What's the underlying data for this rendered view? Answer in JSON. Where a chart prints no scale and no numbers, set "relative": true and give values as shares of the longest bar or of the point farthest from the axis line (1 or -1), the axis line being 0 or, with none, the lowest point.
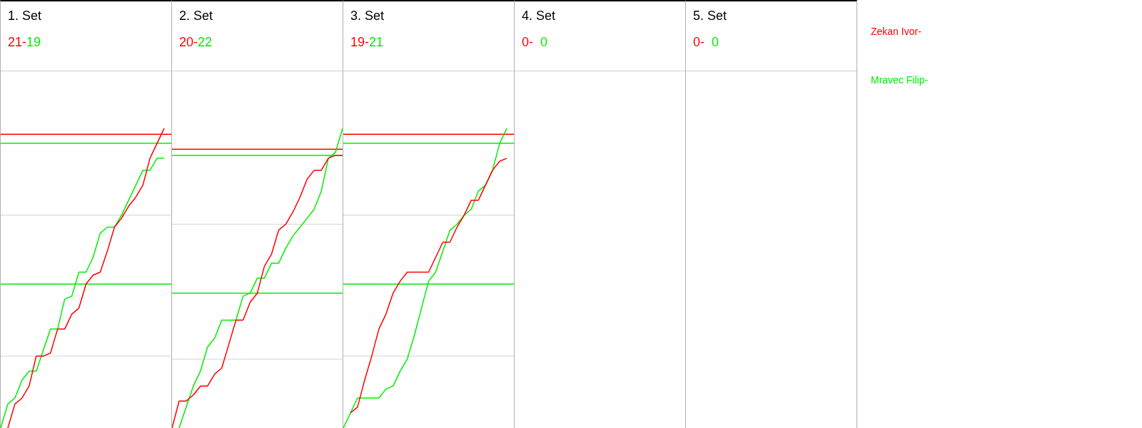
{
  "chart_data": [
    {
      "type": "line",
      "title": "1. Set",
      "relative": true,
      "legend": "right",
      "annotations": [
        "21-",
        "19"
      ],
      "categories": [
        null,
        null,
        null,
        null,
        null,
        null,
        null,
        null,
        null,
        null,
        null,
        null,
        null,
        null,
        null,
        null,
        null,
        null,
        null,
        null,
        null,
        null,
        null,
        null,
        null
      ],
      "series": [
        {
          "name": "Zekan Ivor-",
          "color": "#ff0000",
          "values": [
            null,
            0,
            0.08,
            0.1,
            0.14,
            0.24,
            0.24,
            0.25,
            0.33,
            0.33,
            0.38,
            0.4,
            0.48,
            0.51,
            0.52,
            0.59,
            0.67,
            0.7,
            0.74,
            0.77,
            0.81,
            0.9,
            0.95,
            1,
            null
          ]
        },
        {
          "name": "Mravec Filip-",
          "color": "#00ee00",
          "values": [
            0,
            0.08,
            0.1,
            0.16,
            0.19,
            0.19,
            0.26,
            0.33,
            0.33,
            0.43,
            0.44,
            0.52,
            0.52,
            0.57,
            0.65,
            0.67,
            0.67,
            0.71,
            0.76,
            0.81,
            0.86,
            0.86,
            0.9,
            0.9,
            null
          ]
        }
      ],
      "ref_lines": [
        {
          "axis": "y",
          "value": 0.98,
          "color": "#ff0000"
        },
        {
          "axis": "y",
          "value": 0.95,
          "color": "#00ee00"
        },
        {
          "axis": "y",
          "value": 0.48,
          "color": "#00ee00"
        },
        {
          "axis": "y",
          "value": 0.24,
          "color": "#d3d3d3"
        },
        {
          "axis": "y",
          "value": 0.71,
          "color": "#d3d3d3"
        }
      ]
    },
    {
      "type": "line",
      "title": "2. Set",
      "relative": true,
      "annotations": [
        "20-",
        "22"
      ],
      "categories": [
        null,
        null,
        null,
        null,
        null,
        null,
        null,
        null,
        null,
        null,
        null,
        null,
        null,
        null,
        null,
        null,
        null,
        null,
        null,
        null,
        null,
        null,
        null,
        null,
        null
      ],
      "series": [
        {
          "color": "#ff0000",
          "values": [
            0,
            0.09,
            0.09,
            0.11,
            0.14,
            0.14,
            0.18,
            0.2,
            0.28,
            0.36,
            0.36,
            0.42,
            0.45,
            0.54,
            0.58,
            0.66,
            0.68,
            0.72,
            0.77,
            0.83,
            0.86,
            0.86,
            0.9,
            0.91,
            0.91
          ]
        },
        {
          "color": "#00ee00",
          "values": [
            null,
            0,
            0.07,
            0.14,
            0.19,
            0.27,
            0.3,
            0.36,
            0.36,
            0.36,
            0.44,
            0.45,
            0.5,
            0.5,
            0.55,
            0.55,
            0.6,
            0.64,
            0.67,
            0.7,
            0.73,
            0.79,
            0.9,
            0.92,
            1
          ]
        }
      ],
      "ref_lines": [
        {
          "axis": "y",
          "value": 0.93,
          "color": "#ff0000"
        },
        {
          "axis": "y",
          "value": 0.91,
          "color": "#00ee00"
        },
        {
          "axis": "y",
          "value": 0.45,
          "color": "#00ee00"
        },
        {
          "axis": "y",
          "value": 0.23,
          "color": "#d3d3d3"
        },
        {
          "axis": "y",
          "value": 0.68,
          "color": "#d3d3d3"
        }
      ]
    },
    {
      "type": "line",
      "title": "3. Set",
      "relative": true,
      "annotations": [
        "19-",
        "21"
      ],
      "categories": [
        null,
        null,
        null,
        null,
        null,
        null,
        null,
        null,
        null,
        null,
        null,
        null,
        null,
        null,
        null,
        null,
        null,
        null,
        null,
        null,
        null,
        null,
        null,
        null,
        null
      ],
      "series": [
        {
          "color": "#ff0000",
          "values": [
            null,
            0.05,
            0.07,
            0.16,
            0.24,
            0.33,
            0.38,
            0.45,
            0.49,
            0.52,
            0.52,
            0.52,
            0.52,
            0.57,
            0.62,
            0.62,
            0.67,
            0.71,
            0.76,
            0.76,
            0.81,
            0.86,
            0.89,
            0.9,
            null
          ]
        },
        {
          "color": "#00ee00",
          "values": [
            0,
            0.05,
            0.1,
            0.1,
            0.1,
            0.1,
            0.13,
            0.14,
            0.19,
            0.23,
            0.31,
            0.4,
            0.49,
            0.52,
            0.59,
            0.66,
            0.68,
            0.71,
            0.73,
            0.79,
            0.81,
            0.86,
            0.95,
            1,
            null
          ]
        }
      ],
      "ref_lines": [
        {
          "axis": "y",
          "value": 0.98,
          "color": "#ff0000"
        },
        {
          "axis": "y",
          "value": 0.95,
          "color": "#00ee00"
        },
        {
          "axis": "y",
          "value": 0.48,
          "color": "#00ee00"
        },
        {
          "axis": "y",
          "value": 0.24,
          "color": "#d3d3d3"
        },
        {
          "axis": "y",
          "value": 0.71,
          "color": "#d3d3d3"
        }
      ]
    },
    {
      "type": "other",
      "title": "4. Set",
      "annotations": [
        "0-",
        "0"
      ],
      "colors": [
        "#ff0000",
        "#00ee00"
      ]
    },
    {
      "type": "other",
      "title": "5. Set",
      "annotations": [
        "0-",
        "0"
      ],
      "colors": [
        "#ff0000",
        "#00ee00"
      ]
    }
  ]
}
